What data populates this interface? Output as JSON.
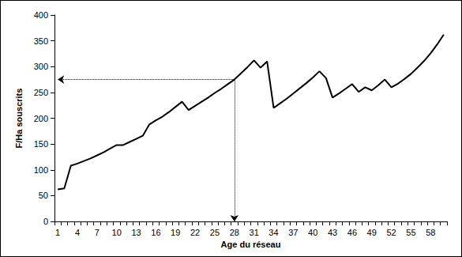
{
  "chart_data": {
    "type": "line",
    "x_label": "Age du réseau",
    "y_label": "F/Ha souscrits",
    "categories": [
      1,
      null,
      null,
      4,
      null,
      null,
      7,
      null,
      null,
      10,
      null,
      null,
      13,
      null,
      null,
      16,
      null,
      null,
      19,
      null,
      null,
      22,
      null,
      null,
      25,
      null,
      null,
      28,
      null,
      null,
      31,
      null,
      null,
      34,
      null,
      null,
      37,
      null,
      null,
      40,
      null,
      null,
      43,
      null,
      null,
      46,
      null,
      null,
      49,
      null,
      null,
      52,
      null,
      null,
      55,
      null,
      null,
      58,
      null,
      null
    ],
    "values": [
      62,
      64,
      108,
      112,
      117,
      122,
      128,
      134,
      141,
      148,
      148,
      154,
      160,
      166,
      188,
      196,
      203,
      212,
      222,
      232,
      216,
      224,
      232,
      240,
      249,
      257,
      266,
      275,
      287,
      299,
      312,
      298,
      310,
      220,
      229,
      238,
      248,
      258,
      268,
      279,
      291,
      278,
      240,
      248,
      257,
      266,
      251,
      260,
      254,
      264,
      275,
      260,
      267,
      276,
      286,
      298,
      311,
      326,
      343,
      362
    ],
    "color": "#000000",
    "ylim": [
      0,
      400
    ],
    "yticks": [
      0,
      50,
      100,
      150,
      200,
      250,
      300,
      350,
      400
    ],
    "grid": false,
    "annotation": {
      "x": 28,
      "y": 275
    }
  }
}
